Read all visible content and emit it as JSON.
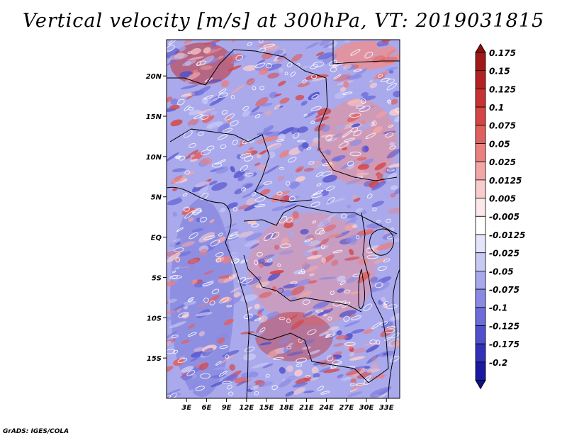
{
  "title": "Vertical velocity [m/s] at 300hPa, VT: 2019031815",
  "credit": "GrADS: IGES/COLA",
  "map": {
    "lon_range": [
      0,
      35
    ],
    "lat_range": [
      -20,
      24.5
    ],
    "lon_ticks": [
      {
        "value": 3,
        "label": "3E"
      },
      {
        "value": 6,
        "label": "6E"
      },
      {
        "value": 9,
        "label": "9E"
      },
      {
        "value": 12,
        "label": "12E"
      },
      {
        "value": 15,
        "label": "15E"
      },
      {
        "value": 18,
        "label": "18E"
      },
      {
        "value": 21,
        "label": "21E"
      },
      {
        "value": 24,
        "label": "24E"
      },
      {
        "value": 27,
        "label": "27E"
      },
      {
        "value": 30,
        "label": "30E"
      },
      {
        "value": 33,
        "label": "33E"
      }
    ],
    "lat_ticks": [
      {
        "value": 20,
        "label": "20N"
      },
      {
        "value": 15,
        "label": "15N"
      },
      {
        "value": 10,
        "label": "10N"
      },
      {
        "value": 5,
        "label": "5N"
      },
      {
        "value": 0,
        "label": "EQ"
      },
      {
        "value": -5,
        "label": "5S"
      },
      {
        "value": -10,
        "label": "10S"
      },
      {
        "value": -15,
        "label": "15S"
      }
    ]
  },
  "legend": {
    "levels": [
      {
        "label": "0.175",
        "color": "#a01818"
      },
      {
        "label": "0.15",
        "color": "#b42222"
      },
      {
        "label": "0.125",
        "color": "#c73232"
      },
      {
        "label": "0.1",
        "color": "#d64545"
      },
      {
        "label": "0.075",
        "color": "#e06060"
      },
      {
        "label": "0.05",
        "color": "#ea8080"
      },
      {
        "label": "0.025",
        "color": "#f2a6a6"
      },
      {
        "label": "0.0125",
        "color": "#f8cccc"
      },
      {
        "label": "0.005",
        "color": "#fce8e8"
      },
      {
        "label": "-0.005",
        "color": "#ffffff"
      },
      {
        "label": "-0.0125",
        "color": "#e4e4fb"
      },
      {
        "label": "-0.025",
        "color": "#c8c8f5"
      },
      {
        "label": "-0.05",
        "color": "#a8a8ee"
      },
      {
        "label": "-0.075",
        "color": "#8a8ae4"
      },
      {
        "label": "-0.1",
        "color": "#6c6cda"
      },
      {
        "label": "-0.125",
        "color": "#5050cc"
      },
      {
        "label": "-0.175",
        "color": "#3030b8"
      },
      {
        "label": "-0.2",
        "color": "#1a1aa0"
      }
    ],
    "top_color": "#8a1010",
    "bottom_color": "#10108a"
  },
  "colors": {
    "background_field": "#a9a9ec",
    "positive_field": "#ee8e8e",
    "strong_positive": "#c03030",
    "strong_negative": "#4444c4",
    "borders": "#000000"
  }
}
